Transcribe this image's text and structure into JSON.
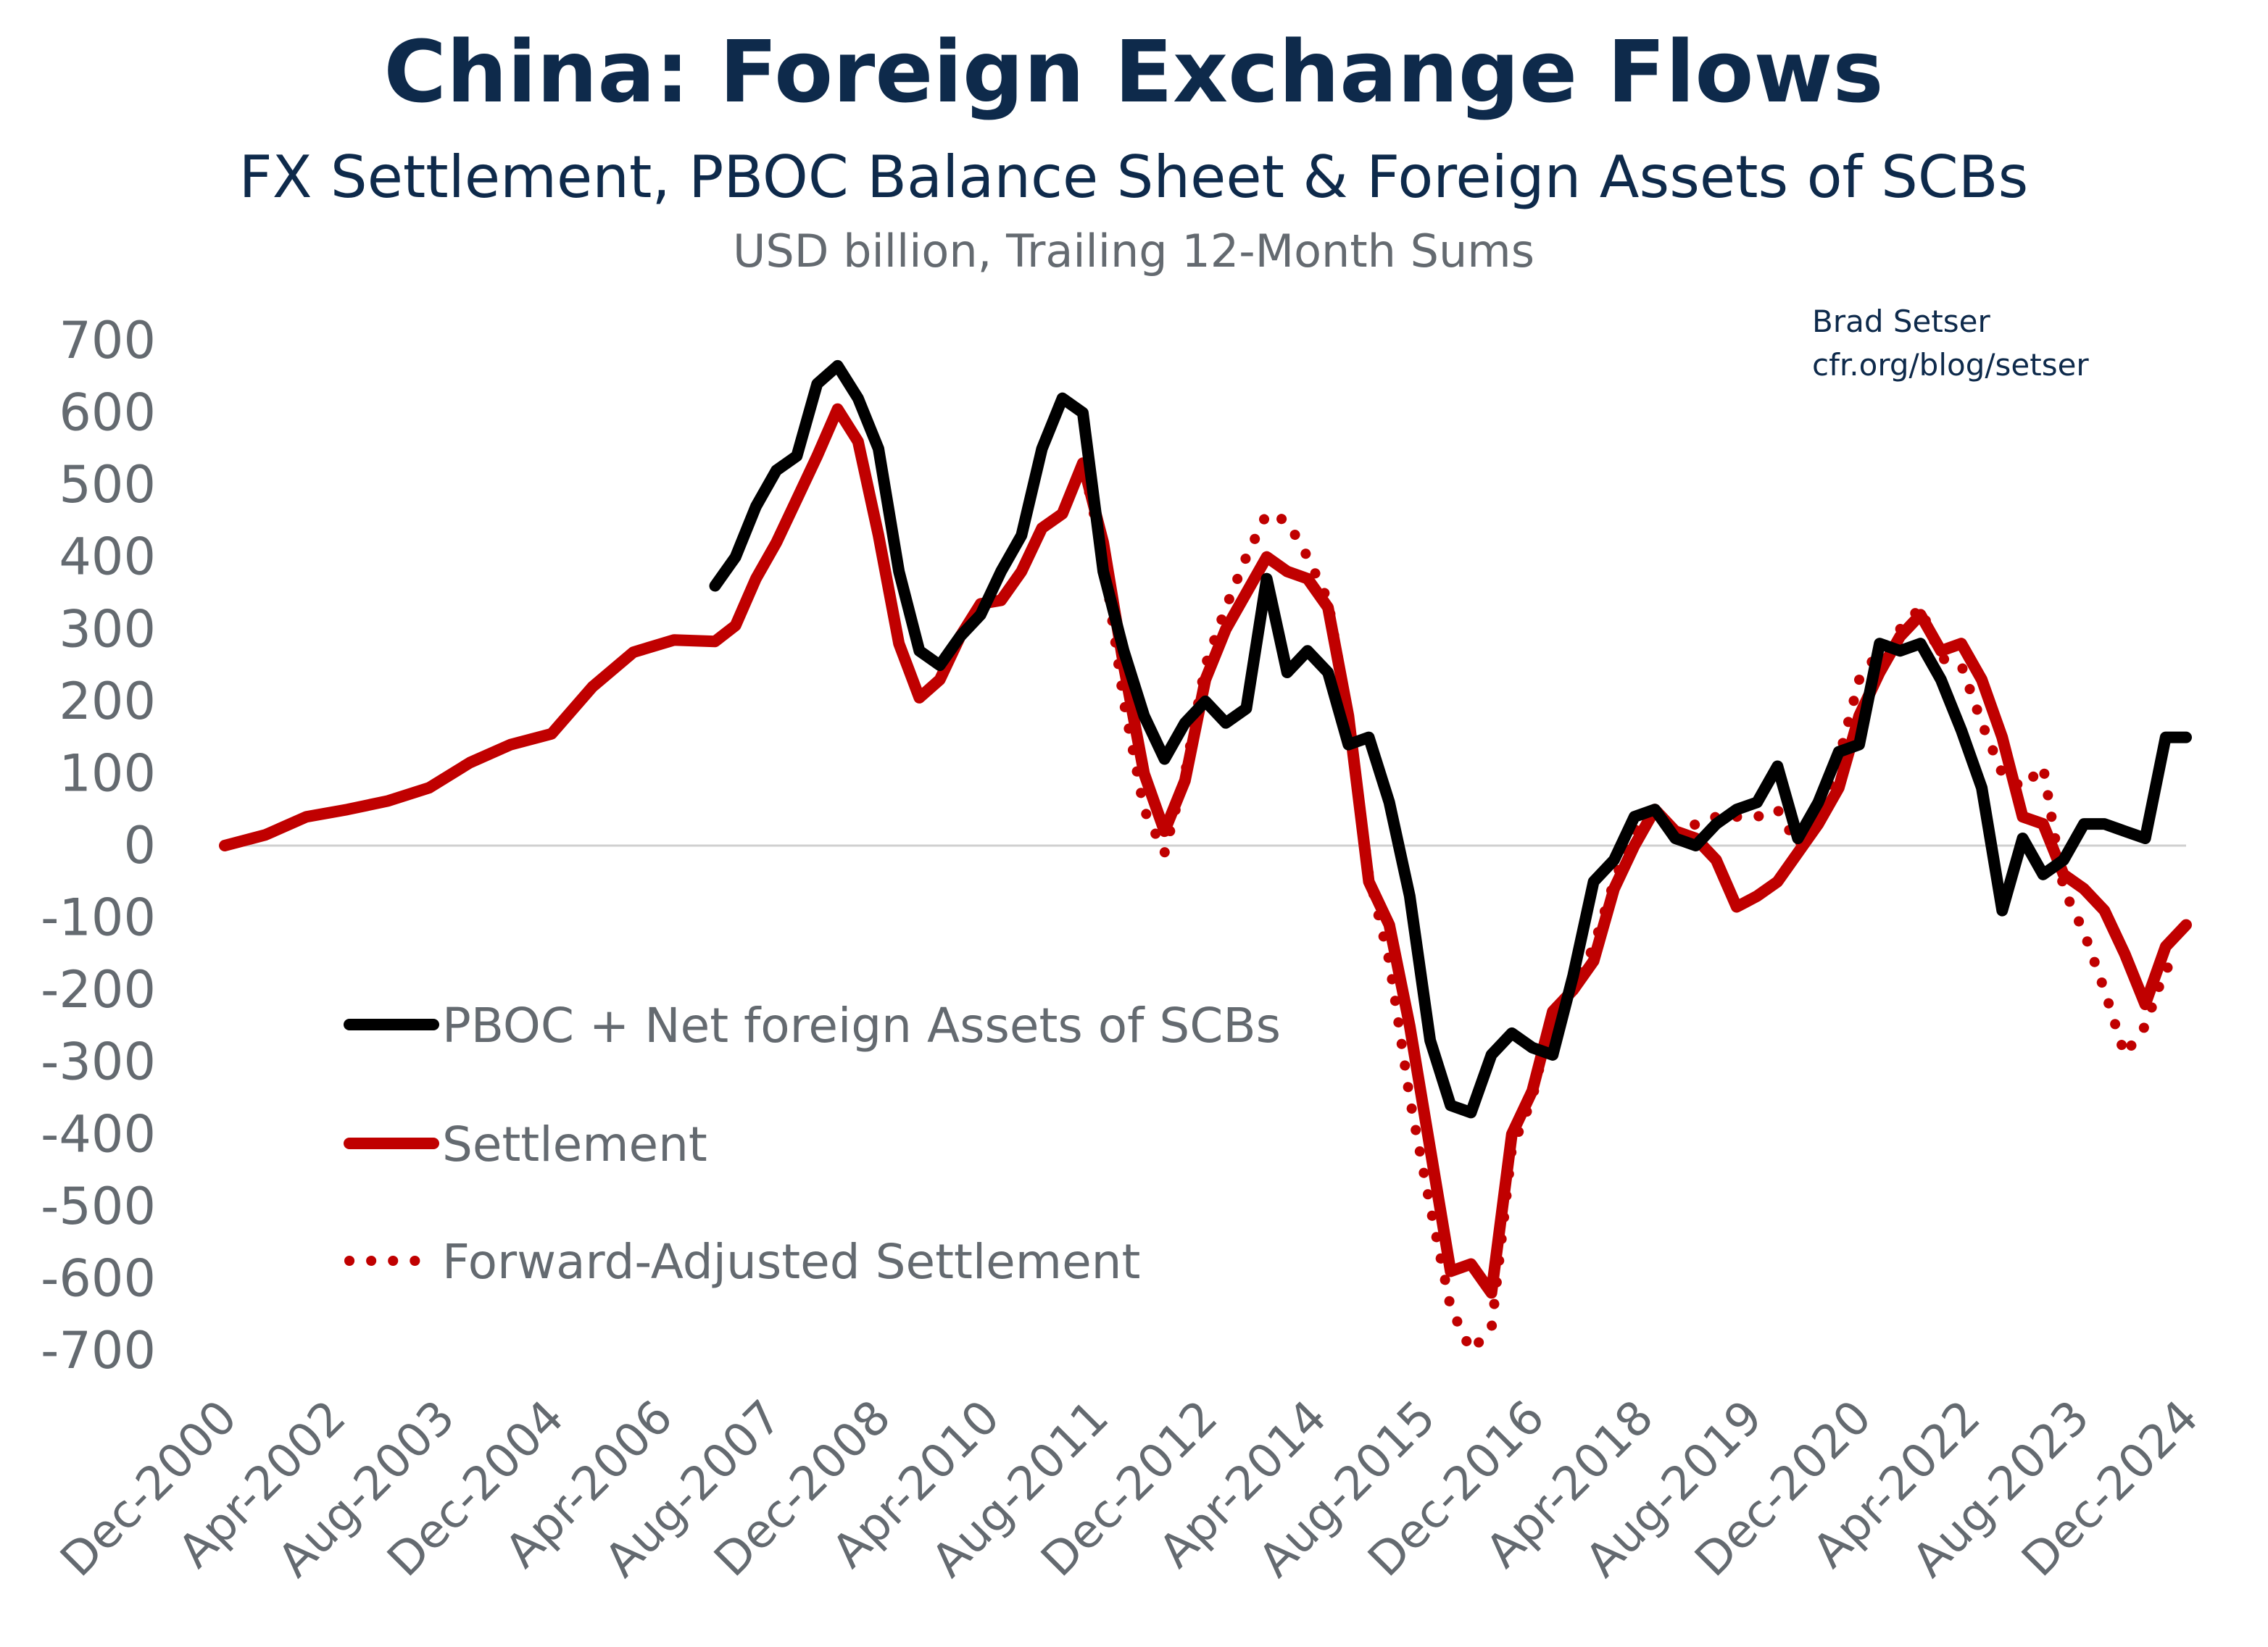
{
  "chart_data": {
    "type": "line",
    "title": "China: Foreign Exchange Flows",
    "subtitle": "FX Settlement, PBOC Balance Sheet & Foreign Assets of SCBs",
    "units": "USD billion, Trailing 12-Month Sums",
    "attribution": [
      "Brad Setser",
      "cfr.org/blog/setser"
    ],
    "ylim": [
      -700,
      700
    ],
    "yticks": [
      700,
      600,
      500,
      400,
      300,
      200,
      100,
      0,
      -100,
      -200,
      -300,
      -400,
      -500,
      -600,
      -700
    ],
    "xlim": [
      "2000-12",
      "2024-12"
    ],
    "xticks": [
      "Dec-2000",
      "Apr-2002",
      "Aug-2003",
      "Dec-2004",
      "Apr-2006",
      "Aug-2007",
      "Dec-2008",
      "Apr-2010",
      "Aug-2011",
      "Dec-2012",
      "Apr-2014",
      "Aug-2015",
      "Dec-2016",
      "Apr-2018",
      "Aug-2019",
      "Dec-2020",
      "Apr-2022",
      "Aug-2023",
      "Dec-2024"
    ],
    "grid": false,
    "legend": "left-center",
    "series": [
      {
        "name": "PBOC + Net foreign Assets of SCBs",
        "color": "#000000",
        "style": "solid",
        "points": [
          [
            "2006-12",
            360
          ],
          [
            "2007-03",
            400
          ],
          [
            "2007-06",
            470
          ],
          [
            "2007-09",
            520
          ],
          [
            "2007-12",
            540
          ],
          [
            "2008-03",
            640
          ],
          [
            "2008-06",
            665
          ],
          [
            "2008-09",
            620
          ],
          [
            "2008-12",
            550
          ],
          [
            "2009-03",
            380
          ],
          [
            "2009-06",
            270
          ],
          [
            "2009-09",
            250
          ],
          [
            "2009-12",
            290
          ],
          [
            "2010-03",
            320
          ],
          [
            "2010-06",
            380
          ],
          [
            "2010-09",
            430
          ],
          [
            "2010-12",
            550
          ],
          [
            "2011-03",
            620
          ],
          [
            "2011-06",
            600
          ],
          [
            "2011-09",
            380
          ],
          [
            "2011-12",
            270
          ],
          [
            "2012-03",
            180
          ],
          [
            "2012-06",
            120
          ],
          [
            "2012-09",
            170
          ],
          [
            "2012-12",
            200
          ],
          [
            "2013-03",
            170
          ],
          [
            "2013-06",
            190
          ],
          [
            "2013-09",
            370
          ],
          [
            "2013-12",
            240
          ],
          [
            "2014-03",
            270
          ],
          [
            "2014-06",
            240
          ],
          [
            "2014-09",
            140
          ],
          [
            "2014-12",
            150
          ],
          [
            "2015-03",
            60
          ],
          [
            "2015-06",
            -70
          ],
          [
            "2015-09",
            -270
          ],
          [
            "2015-12",
            -360
          ],
          [
            "2016-03",
            -370
          ],
          [
            "2016-06",
            -290
          ],
          [
            "2016-09",
            -260
          ],
          [
            "2016-12",
            -280
          ],
          [
            "2017-03",
            -290
          ],
          [
            "2017-06",
            -180
          ],
          [
            "2017-09",
            -50
          ],
          [
            "2017-12",
            -20
          ],
          [
            "2018-03",
            40
          ],
          [
            "2018-06",
            50
          ],
          [
            "2018-09",
            10
          ],
          [
            "2018-12",
            0
          ],
          [
            "2019-03",
            30
          ],
          [
            "2019-06",
            50
          ],
          [
            "2019-09",
            60
          ],
          [
            "2019-12",
            110
          ],
          [
            "2020-03",
            10
          ],
          [
            "2020-06",
            60
          ],
          [
            "2020-09",
            130
          ],
          [
            "2020-12",
            140
          ],
          [
            "2021-03",
            280
          ],
          [
            "2021-06",
            270
          ],
          [
            "2021-09",
            280
          ],
          [
            "2021-12",
            230
          ],
          [
            "2022-03",
            160
          ],
          [
            "2022-06",
            80
          ],
          [
            "2022-09",
            -90
          ],
          [
            "2022-12",
            10
          ],
          [
            "2023-03",
            -40
          ],
          [
            "2023-06",
            -20
          ],
          [
            "2023-09",
            30
          ],
          [
            "2023-12",
            30
          ],
          [
            "2024-03",
            20
          ],
          [
            "2024-06",
            10
          ],
          [
            "2024-09",
            150
          ],
          [
            "2024-12",
            150
          ]
        ]
      },
      {
        "name": "Settlement",
        "color": "#c00000",
        "style": "solid",
        "points": [
          [
            "2000-12",
            0
          ],
          [
            "2001-06",
            15
          ],
          [
            "2001-12",
            40
          ],
          [
            "2002-06",
            50
          ],
          [
            "2002-12",
            62
          ],
          [
            "2003-06",
            80
          ],
          [
            "2003-12",
            115
          ],
          [
            "2004-06",
            140
          ],
          [
            "2004-12",
            155
          ],
          [
            "2005-06",
            220
          ],
          [
            "2005-12",
            268
          ],
          [
            "2006-06",
            285
          ],
          [
            "2006-12",
            283
          ],
          [
            "2007-03",
            305
          ],
          [
            "2007-06",
            370
          ],
          [
            "2007-09",
            420
          ],
          [
            "2007-12",
            480
          ],
          [
            "2008-03",
            540
          ],
          [
            "2008-06",
            605
          ],
          [
            "2008-09",
            560
          ],
          [
            "2008-12",
            430
          ],
          [
            "2009-03",
            280
          ],
          [
            "2009-06",
            205
          ],
          [
            "2009-09",
            230
          ],
          [
            "2009-12",
            290
          ],
          [
            "2010-03",
            335
          ],
          [
            "2010-06",
            340
          ],
          [
            "2010-09",
            380
          ],
          [
            "2010-12",
            440
          ],
          [
            "2011-03",
            460
          ],
          [
            "2011-06",
            530
          ],
          [
            "2011-09",
            420
          ],
          [
            "2011-12",
            250
          ],
          [
            "2012-03",
            100
          ],
          [
            "2012-06",
            20
          ],
          [
            "2012-09",
            90
          ],
          [
            "2012-12",
            230
          ],
          [
            "2013-03",
            300
          ],
          [
            "2013-06",
            350
          ],
          [
            "2013-09",
            400
          ],
          [
            "2013-12",
            380
          ],
          [
            "2014-03",
            370
          ],
          [
            "2014-06",
            330
          ],
          [
            "2014-09",
            180
          ],
          [
            "2014-12",
            -50
          ],
          [
            "2015-03",
            -110
          ],
          [
            "2015-06",
            -250
          ],
          [
            "2015-09",
            -420
          ],
          [
            "2015-12",
            -590
          ],
          [
            "2016-03",
            -580
          ],
          [
            "2016-06",
            -620
          ],
          [
            "2016-09",
            -400
          ],
          [
            "2016-12",
            -340
          ],
          [
            "2017-03",
            -230
          ],
          [
            "2017-06",
            -200
          ],
          [
            "2017-09",
            -160
          ],
          [
            "2017-12",
            -60
          ],
          [
            "2018-03",
            0
          ],
          [
            "2018-06",
            50
          ],
          [
            "2018-09",
            20
          ],
          [
            "2018-12",
            10
          ],
          [
            "2019-03",
            -20
          ],
          [
            "2019-06",
            -85
          ],
          [
            "2019-09",
            -70
          ],
          [
            "2019-12",
            -50
          ],
          [
            "2020-03",
            -10
          ],
          [
            "2020-06",
            30
          ],
          [
            "2020-09",
            80
          ],
          [
            "2020-12",
            180
          ],
          [
            "2021-03",
            240
          ],
          [
            "2021-06",
            290
          ],
          [
            "2021-09",
            320
          ],
          [
            "2021-12",
            270
          ],
          [
            "2022-03",
            280
          ],
          [
            "2022-06",
            230
          ],
          [
            "2022-09",
            150
          ],
          [
            "2022-12",
            40
          ],
          [
            "2023-03",
            30
          ],
          [
            "2023-06",
            -40
          ],
          [
            "2023-09",
            -60
          ],
          [
            "2023-12",
            -90
          ],
          [
            "2024-03",
            -150
          ],
          [
            "2024-06",
            -220
          ],
          [
            "2024-09",
            -140
          ],
          [
            "2024-12",
            -110
          ]
        ]
      },
      {
        "name": "Forward-Adjusted Settlement",
        "color": "#c00000",
        "style": "dotted",
        "points": [
          [
            "2010-12",
            440
          ],
          [
            "2011-03",
            460
          ],
          [
            "2011-06",
            530
          ],
          [
            "2011-09",
            400
          ],
          [
            "2011-12",
            200
          ],
          [
            "2012-03",
            50
          ],
          [
            "2012-06",
            -10
          ],
          [
            "2012-09",
            100
          ],
          [
            "2012-12",
            250
          ],
          [
            "2013-03",
            330
          ],
          [
            "2013-06",
            400
          ],
          [
            "2013-09",
            460
          ],
          [
            "2013-12",
            450
          ],
          [
            "2014-03",
            400
          ],
          [
            "2014-06",
            340
          ],
          [
            "2014-09",
            180
          ],
          [
            "2014-12",
            -40
          ],
          [
            "2015-03",
            -160
          ],
          [
            "2015-06",
            -350
          ],
          [
            "2015-09",
            -500
          ],
          [
            "2015-12",
            -640
          ],
          [
            "2016-03",
            -700
          ],
          [
            "2016-06",
            -670
          ],
          [
            "2016-09",
            -420
          ],
          [
            "2016-12",
            -350
          ],
          [
            "2017-03",
            -230
          ],
          [
            "2017-06",
            -200
          ],
          [
            "2017-09",
            -140
          ],
          [
            "2017-12",
            -50
          ],
          [
            "2018-03",
            20
          ],
          [
            "2018-06",
            50
          ],
          [
            "2018-09",
            10
          ],
          [
            "2018-12",
            30
          ],
          [
            "2019-03",
            40
          ],
          [
            "2019-06",
            40
          ],
          [
            "2019-09",
            40
          ],
          [
            "2019-12",
            50
          ],
          [
            "2020-03",
            0
          ],
          [
            "2020-06",
            40
          ],
          [
            "2020-09",
            120
          ],
          [
            "2020-12",
            230
          ],
          [
            "2021-03",
            270
          ],
          [
            "2021-06",
            300
          ],
          [
            "2021-09",
            330
          ],
          [
            "2021-12",
            260
          ],
          [
            "2022-03",
            250
          ],
          [
            "2022-06",
            170
          ],
          [
            "2022-09",
            100
          ],
          [
            "2022-12",
            80
          ],
          [
            "2023-03",
            110
          ],
          [
            "2023-06",
            -60
          ],
          [
            "2023-09",
            -120
          ],
          [
            "2023-12",
            -200
          ],
          [
            "2024-03",
            -290
          ],
          [
            "2024-06",
            -250
          ],
          [
            "2024-09",
            -170
          ],
          [
            "2024-12",
            -160
          ]
        ]
      }
    ]
  }
}
